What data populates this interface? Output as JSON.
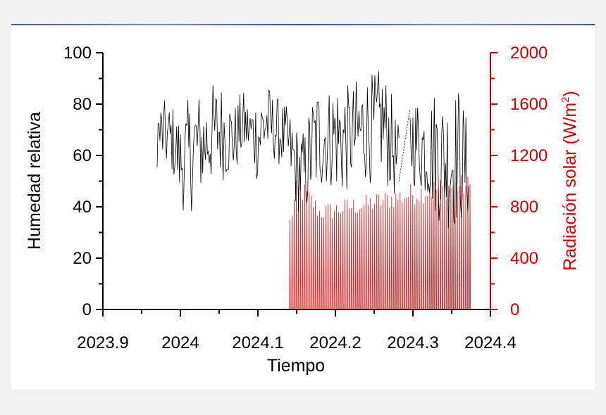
{
  "chart_data": {
    "type": "line",
    "xlabel": "Tiempo",
    "ylabel_left": "Humedad relativa",
    "ylabel_right_main": "Radiación solar (W/m",
    "ylabel_right_sup": "2",
    "ylabel_right_close": ")",
    "xlim": [
      2023.9,
      2024.4
    ],
    "ylim_left": [
      0,
      100
    ],
    "ylim_right": [
      0,
      2000
    ],
    "x_ticks": [
      "2023.9",
      "2024",
      "2024.1",
      "2024.2",
      "2024.3",
      "2024.4"
    ],
    "y_left_ticks": [
      "0",
      "20",
      "40",
      "60",
      "80",
      "100"
    ],
    "y_right_ticks": [
      "0",
      "400",
      "800",
      "1200",
      "1600",
      "2000"
    ],
    "grid": false,
    "series": [
      {
        "axis": "left",
        "color": "#000000",
        "x_start": 2023.97,
        "x_end": 2024.373,
        "gap": [
          2024.282,
          2024.296
        ],
        "envelope": [
          [
            2023.975,
            55,
            82
          ],
          [
            2023.99,
            52,
            80
          ],
          [
            2024.0,
            40,
            75
          ],
          [
            2024.01,
            35,
            82
          ],
          [
            2024.02,
            42,
            86
          ],
          [
            2024.03,
            45,
            84
          ],
          [
            2024.04,
            48,
            88
          ],
          [
            2024.05,
            50,
            90
          ],
          [
            2024.06,
            50,
            86
          ],
          [
            2024.07,
            52,
            80
          ],
          [
            2024.08,
            58,
            86
          ],
          [
            2024.09,
            60,
            80
          ],
          [
            2024.1,
            48,
            86
          ],
          [
            2024.11,
            56,
            90
          ],
          [
            2024.12,
            58,
            84
          ],
          [
            2024.13,
            55,
            82
          ],
          [
            2024.14,
            50,
            78
          ],
          [
            2024.15,
            38,
            72
          ],
          [
            2024.16,
            35,
            70
          ],
          [
            2024.17,
            40,
            85
          ],
          [
            2024.18,
            45,
            90
          ],
          [
            2024.19,
            48,
            86
          ],
          [
            2024.2,
            45,
            92
          ],
          [
            2024.21,
            42,
            90
          ],
          [
            2024.22,
            48,
            86
          ],
          [
            2024.23,
            45,
            92
          ],
          [
            2024.24,
            50,
            93
          ],
          [
            2024.25,
            48,
            92
          ],
          [
            2024.26,
            52,
            95
          ],
          [
            2024.27,
            45,
            88
          ],
          [
            2024.28,
            42,
            72
          ],
          [
            2024.3,
            48,
            85
          ],
          [
            2024.31,
            45,
            83
          ],
          [
            2024.32,
            42,
            82
          ],
          [
            2024.33,
            35,
            88
          ],
          [
            2024.34,
            32,
            84
          ],
          [
            2024.35,
            30,
            86
          ],
          [
            2024.36,
            32,
            88
          ],
          [
            2024.373,
            35,
            70
          ]
        ]
      },
      {
        "axis": "right",
        "color": "#cc0000",
        "x_start": 2024.14,
        "x_end": 2024.373,
        "daily_peak": [
          [
            2024.14,
            700
          ],
          [
            2024.15,
            1020
          ],
          [
            2024.16,
            1000
          ],
          [
            2024.18,
            830
          ],
          [
            2024.2,
            850
          ],
          [
            2024.22,
            880
          ],
          [
            2024.24,
            900
          ],
          [
            2024.26,
            930
          ],
          [
            2024.28,
            960
          ],
          [
            2024.3,
            990
          ],
          [
            2024.33,
            1030
          ],
          [
            2024.36,
            1060
          ],
          [
            2024.373,
            1050
          ]
        ]
      }
    ]
  }
}
